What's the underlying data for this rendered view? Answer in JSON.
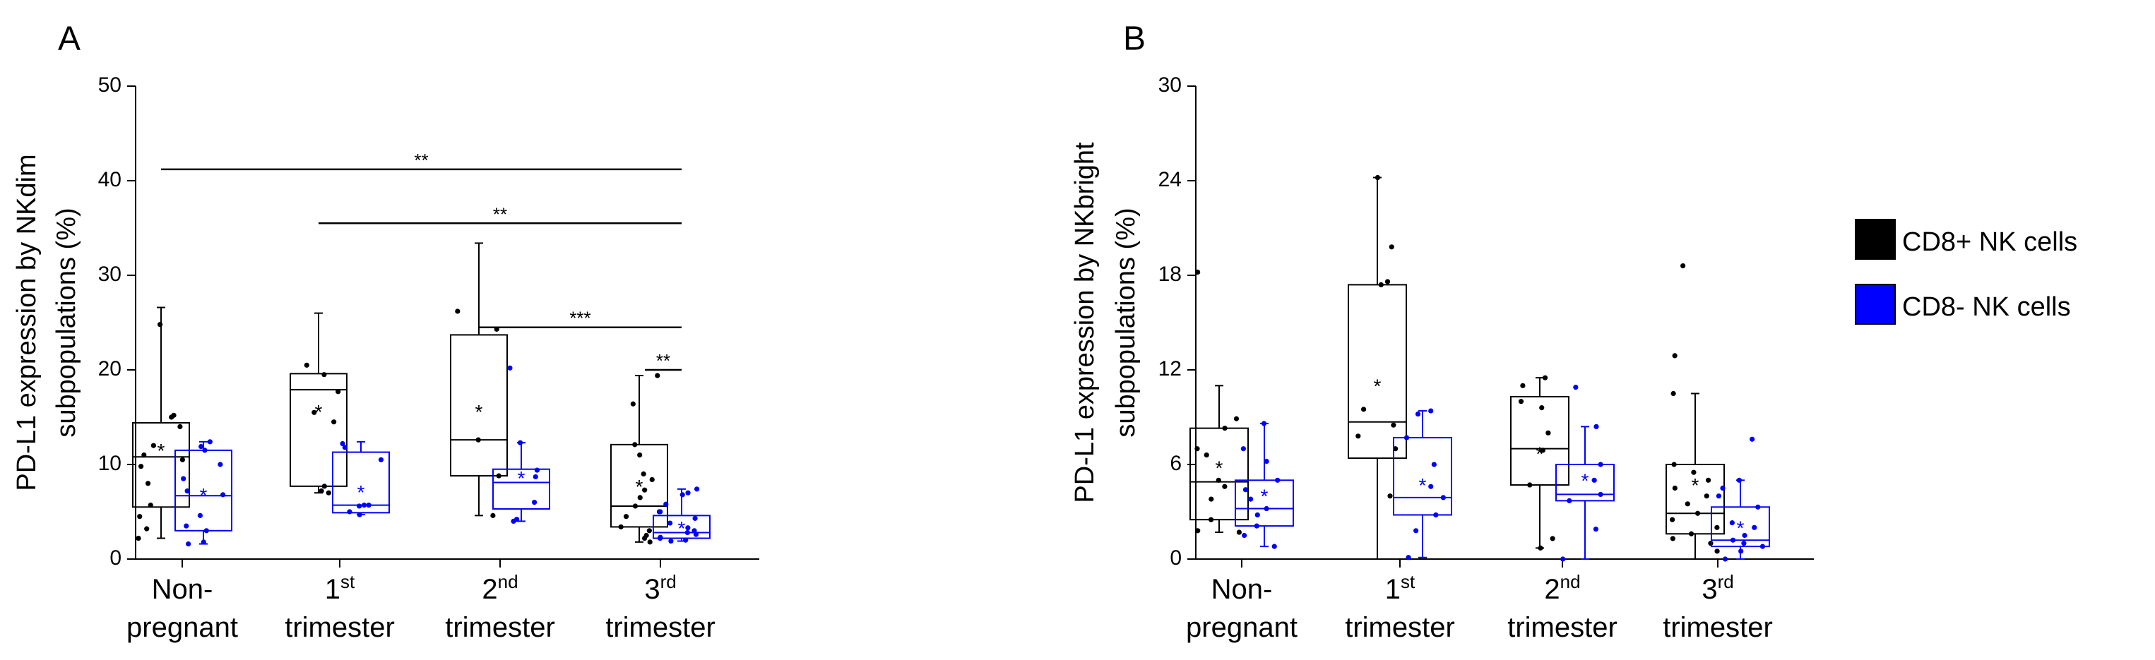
{
  "colors": {
    "cd8_pos": "#000000",
    "cd8_neg": "#0000ff",
    "axis": "#000000"
  },
  "legend": {
    "items": [
      {
        "label": "CD8+ NK cells",
        "color": "#000000"
      },
      {
        "label": "CD8- NK cells",
        "color": "#0000ff"
      }
    ]
  },
  "chart_data": [
    {
      "type": "box",
      "panel_label": "A",
      "ylabel_line1": "PD-L1 expression by NKdim",
      "ylabel_line2": "subpopulations (%)",
      "ylim": [
        0,
        50
      ],
      "yticks": [
        0,
        10,
        20,
        30,
        40,
        50
      ],
      "ytick_labels": [
        "0",
        "10",
        "20",
        "30",
        "40",
        "50"
      ],
      "categories": [
        {
          "line1": "Non-",
          "sup": "",
          "line2": "pregnant"
        },
        {
          "line1": "1",
          "sup": "st",
          "line2": "trimester"
        },
        {
          "line1": "2",
          "sup": "nd",
          "line2": "trimester"
        },
        {
          "line1": "3",
          "sup": "rd",
          "line2": "trimester"
        }
      ],
      "series": [
        {
          "name": "CD8+ NK cells",
          "boxes": [
            {
              "min": 2.2,
              "q1": 5.5,
              "median": 10.8,
              "q3": 14.4,
              "max": 26.6,
              "mean": 11.5,
              "points": [
                2.2,
                3.2,
                4.5,
                5.7,
                8.0,
                9.8,
                10.5,
                11.0,
                12.0,
                14.0,
                15.0,
                15.2,
                24.8
              ]
            },
            {
              "min": 7.0,
              "q1": 7.7,
              "median": 17.9,
              "q3": 19.6,
              "max": 26.0,
              "mean": 15.6,
              "points": [
                7.0,
                7.2,
                7.7,
                14.5,
                15.5,
                17.7,
                19.5,
                20.5
              ]
            },
            {
              "min": 4.6,
              "q1": 8.8,
              "median": 12.6,
              "q3": 23.7,
              "max": 33.4,
              "mean": 15.6,
              "points": [
                4.6,
                8.8,
                12.6,
                24.3,
                26.2
              ]
            },
            {
              "min": 1.8,
              "q1": 3.4,
              "median": 5.6,
              "q3": 12.1,
              "max": 19.4,
              "mean": 7.7,
              "points": [
                1.8,
                2.2,
                2.5,
                3.0,
                3.4,
                4.5,
                5.0,
                5.6,
                6.5,
                7.3,
                8.4,
                9.0,
                11.0,
                12.1,
                16.4,
                19.4
              ]
            }
          ]
        },
        {
          "name": "CD8- NK cells",
          "boxes": [
            {
              "min": 1.6,
              "q1": 3.0,
              "median": 6.7,
              "q3": 11.5,
              "max": 12.4,
              "mean": 6.8,
              "points": [
                1.6,
                1.8,
                3.0,
                3.5,
                4.6,
                6.8,
                7.2,
                8.5,
                10.0,
                11.5,
                11.9,
                12.4
              ]
            },
            {
              "min": 4.7,
              "q1": 4.9,
              "median": 5.7,
              "q3": 11.3,
              "max": 12.4,
              "mean": 7.1,
              "points": [
                4.7,
                5.0,
                5.6,
                5.7,
                5.7,
                10.5,
                11.8,
                12.2
              ]
            },
            {
              "min": 4.0,
              "q1": 5.3,
              "median": 8.1,
              "q3": 9.5,
              "max": 12.3,
              "mean": 8.6,
              "points": [
                4.0,
                4.2,
                6.0,
                8.7,
                9.4,
                12.3,
                20.2
              ]
            },
            {
              "min": 1.9,
              "q1": 2.2,
              "median": 2.8,
              "q3": 4.6,
              "max": 7.4,
              "mean": 3.3,
              "points": [
                1.9,
                2.0,
                2.2,
                2.3,
                2.6,
                2.8,
                3.0,
                3.3,
                3.8,
                4.3,
                5.0,
                5.8,
                6.8,
                7.0,
                7.4
              ]
            }
          ]
        }
      ],
      "significance": [
        {
          "label": "**",
          "y": 41.2,
          "from_category": 0,
          "to_category": 3
        },
        {
          "label": "**",
          "y": 35.5,
          "from_category": 1,
          "to_category": 3
        },
        {
          "label": "***",
          "y": 24.5,
          "from_category": 2,
          "to_category": 3
        },
        {
          "label": "**",
          "y": 20.0,
          "from_category": 3,
          "to_category": 3
        }
      ]
    },
    {
      "type": "box",
      "panel_label": "B",
      "ylabel_line1": "PD-L1 expression by NKbright",
      "ylabel_line2": "subpopulations (%)",
      "ylim": [
        0,
        30
      ],
      "yticks": [
        0,
        6,
        12,
        18,
        24,
        30
      ],
      "ytick_labels": [
        "0",
        "6",
        "12",
        "18",
        "24",
        "30"
      ],
      "categories": [
        {
          "line1": "Non-",
          "sup": "",
          "line2": "pregnant"
        },
        {
          "line1": "1",
          "sup": "st",
          "line2": "trimester"
        },
        {
          "line1": "2",
          "sup": "nd",
          "line2": "trimester"
        },
        {
          "line1": "3",
          "sup": "rd",
          "line2": "trimester"
        }
      ],
      "series": [
        {
          "name": "CD8+ NK cells",
          "boxes": [
            {
              "min": 1.7,
              "q1": 2.5,
              "median": 4.9,
              "q3": 8.3,
              "max": 11.0,
              "mean": 5.8,
              "points": [
                1.7,
                1.8,
                2.5,
                3.8,
                4.6,
                5.0,
                6.6,
                7.0,
                8.3,
                8.9,
                18.2
              ]
            },
            {
              "min": 0.0,
              "q1": 6.4,
              "median": 8.7,
              "q3": 17.4,
              "max": 24.2,
              "mean": 11.0,
              "points": [
                4.0,
                7.0,
                7.8,
                8.5,
                9.5,
                17.4,
                17.6,
                19.8,
                24.2
              ]
            },
            {
              "min": 0.7,
              "q1": 4.7,
              "median": 7.0,
              "q3": 10.3,
              "max": 11.5,
              "mean": 6.7,
              "points": [
                0.7,
                1.3,
                4.7,
                6.9,
                8.0,
                9.6,
                10.0,
                11.0,
                11.5
              ]
            },
            {
              "min": 0.0,
              "q1": 1.6,
              "median": 2.9,
              "q3": 6.0,
              "max": 10.5,
              "mean": 4.7,
              "points": [
                0.5,
                1.0,
                1.3,
                1.6,
                2.0,
                2.5,
                2.9,
                3.5,
                4.0,
                4.5,
                5.0,
                5.5,
                6.0,
                10.5,
                12.9,
                18.6
              ]
            }
          ]
        },
        {
          "name": "CD8- NK cells",
          "boxes": [
            {
              "min": 0.8,
              "q1": 2.1,
              "median": 3.2,
              "q3": 5.0,
              "max": 8.6,
              "mean": 4.0,
              "points": [
                0.8,
                1.5,
                2.1,
                2.8,
                3.2,
                3.8,
                4.4,
                5.0,
                6.2,
                7.0,
                8.6
              ]
            },
            {
              "min": 0.1,
              "q1": 2.8,
              "median": 3.9,
              "q3": 7.7,
              "max": 9.4,
              "mean": 4.7,
              "points": [
                0.1,
                1.8,
                2.8,
                3.9,
                4.6,
                6.0,
                7.7,
                9.2,
                9.4
              ]
            },
            {
              "min": 0.0,
              "q1": 3.7,
              "median": 4.1,
              "q3": 6.0,
              "max": 8.4,
              "mean": 5.0,
              "points": [
                0.0,
                1.9,
                3.7,
                4.1,
                5.0,
                6.0,
                8.4,
                10.9
              ]
            },
            {
              "min": 0.0,
              "q1": 0.8,
              "median": 1.2,
              "q3": 3.3,
              "max": 5.0,
              "mean": 2.0,
              "points": [
                0.0,
                0.5,
                0.8,
                1.0,
                1.2,
                1.5,
                2.0,
                2.3,
                3.3,
                4.0,
                4.5,
                5.0,
                7.6
              ]
            }
          ]
        }
      ],
      "significance": []
    }
  ]
}
